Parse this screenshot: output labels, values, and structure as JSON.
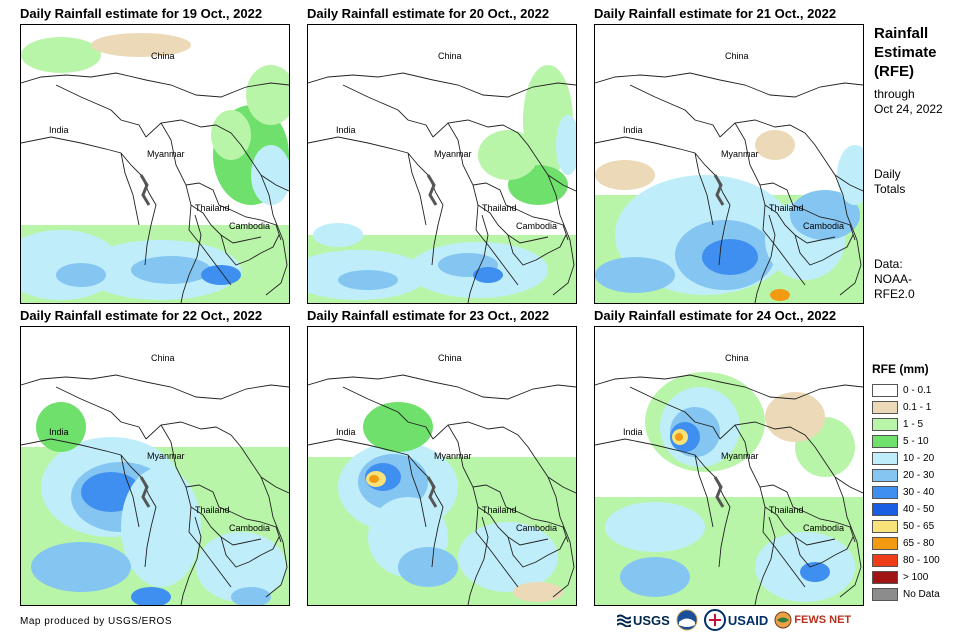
{
  "panels": [
    {
      "title": "Daily Rainfall estimate for 19 Oct., 2022"
    },
    {
      "title": "Daily Rainfall estimate for 20 Oct., 2022"
    },
    {
      "title": "Daily Rainfall estimate for 21 Oct., 2022"
    },
    {
      "title": "Daily Rainfall estimate for 22 Oct., 2022"
    },
    {
      "title": "Daily Rainfall estimate for 23 Oct., 2022"
    },
    {
      "title": "Daily Rainfall estimate for 24 Oct., 2022"
    }
  ],
  "map_labels": {
    "china": "China",
    "india": "India",
    "myanmar": "Myanmar",
    "thailand": "Thailand",
    "cambodia": "Cambodia"
  },
  "side": {
    "title_line1": "Rainfall",
    "title_line2": "Estimate",
    "title_line3": "(RFE)",
    "sub_line1": "through",
    "sub_line2": "Oct 24, 2022",
    "daily_line1": "Daily",
    "daily_line2": "Totals",
    "data_line1": "Data:",
    "data_line2": "NOAA-",
    "data_line3": "RFE2.0"
  },
  "legend": {
    "title": "RFE (mm)",
    "items": [
      {
        "label": "0 - 0.1",
        "color": "#ffffff"
      },
      {
        "label": "0.1 - 1",
        "color": "#ecd9b8"
      },
      {
        "label": "1 - 5",
        "color": "#b9f5a8"
      },
      {
        "label": "5 - 10",
        "color": "#6fe06c"
      },
      {
        "label": "10 - 20",
        "color": "#bfeefa"
      },
      {
        "label": "20 - 30",
        "color": "#84c5f2"
      },
      {
        "label": "30 - 40",
        "color": "#3f8ff0"
      },
      {
        "label": "40 - 50",
        "color": "#1a5fe3"
      },
      {
        "label": "50 - 65",
        "color": "#f8e27a"
      },
      {
        "label": "65 - 80",
        "color": "#f29a12"
      },
      {
        "label": "80 - 100",
        "color": "#ee3b18"
      },
      {
        "label": "> 100",
        "color": "#a01414"
      },
      {
        "label": "No Data",
        "color": "#8c8c8c"
      }
    ]
  },
  "credit": "Map produced by USGS/EROS",
  "logos": {
    "usgs": "USGS",
    "usaid": "USAID",
    "fewsnet": "FEWS NET"
  }
}
